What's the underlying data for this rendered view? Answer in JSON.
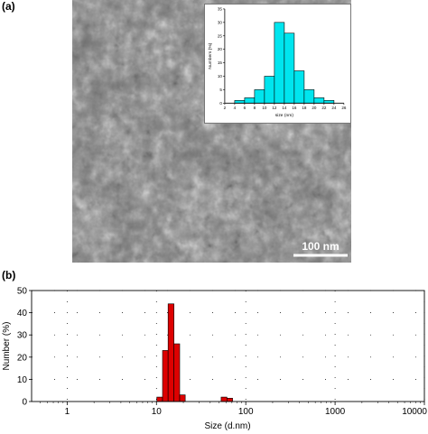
{
  "panels": {
    "a_label": "(a)",
    "b_label": "(b)"
  },
  "sem": {
    "scale_bar_label": "100 nm",
    "scale_bar_color": "#ffffff"
  },
  "chart_data": [
    {
      "type": "bar",
      "title": "",
      "xlabel": "size (nm)",
      "ylabel": "Numbers (%)",
      "xlim": [
        2,
        26
      ],
      "ylim": [
        0,
        35
      ],
      "xticks": [
        "2",
        "4",
        "6",
        "8",
        "10",
        "12",
        "14",
        "16",
        "18",
        "20",
        "22",
        "24",
        "26"
      ],
      "yticks": [
        "0",
        "5",
        "10",
        "15",
        "20",
        "25",
        "30",
        "35"
      ],
      "bin_width": 2,
      "bin_starts": [
        4,
        6,
        8,
        10,
        12,
        14,
        16,
        18,
        20,
        22
      ],
      "values": [
        1,
        2,
        5,
        10,
        30,
        26,
        12,
        5,
        2,
        1
      ],
      "color": "#00e5ee"
    },
    {
      "type": "bar",
      "title": "",
      "xlabel": "Size (d.nm)",
      "ylabel": "Number (%)",
      "xscale": "log",
      "xlim": [
        0.4,
        10000
      ],
      "ylim": [
        0,
        50
      ],
      "xticks": [
        "1",
        "10",
        "100",
        "1000",
        "10000"
      ],
      "yticks": [
        "0",
        "10",
        "20",
        "30",
        "40",
        "50"
      ],
      "grid": true,
      "bins": [
        {
          "x0": 10.1,
          "x1": 11.7,
          "y": 2
        },
        {
          "x0": 11.7,
          "x1": 13.5,
          "y": 23
        },
        {
          "x0": 13.5,
          "x1": 15.7,
          "y": 44
        },
        {
          "x0": 15.7,
          "x1": 18.2,
          "y": 26
        },
        {
          "x0": 18.2,
          "x1": 21.0,
          "y": 3
        },
        {
          "x0": 53.0,
          "x1": 61.5,
          "y": 2
        },
        {
          "x0": 61.5,
          "x1": 71.2,
          "y": 1.5
        }
      ],
      "color": "#dd0000"
    }
  ]
}
